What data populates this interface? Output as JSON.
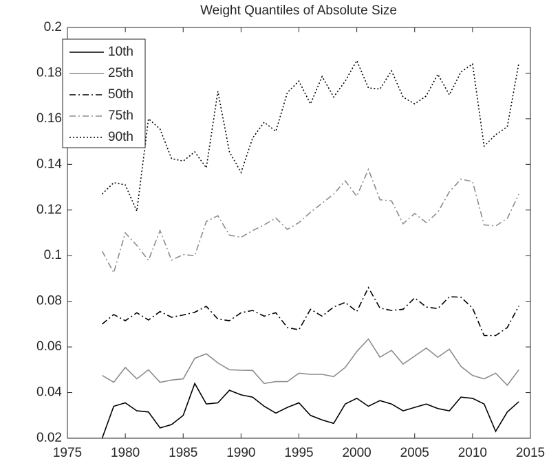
{
  "chart_data": {
    "type": "line",
    "title": "Weight Quantiles of Absolute Size",
    "x": [
      1978,
      1979,
      1980,
      1981,
      1982,
      1983,
      1984,
      1985,
      1986,
      1987,
      1988,
      1989,
      1990,
      1991,
      1992,
      1993,
      1994,
      1995,
      1996,
      1997,
      1998,
      1999,
      2000,
      2001,
      2002,
      2003,
      2004,
      2005,
      2006,
      2007,
      2008,
      2009,
      2010,
      2011,
      2012,
      2013,
      2014
    ],
    "xlim": [
      1975,
      2015
    ],
    "xticks": [
      1975,
      1980,
      1985,
      1990,
      1995,
      2000,
      2005,
      2010,
      2015
    ],
    "ylim": [
      0.02,
      0.2
    ],
    "yticks": [
      0.02,
      0.04,
      0.06,
      0.08,
      0.1,
      0.12,
      0.14,
      0.16,
      0.18,
      0.2
    ],
    "legend": "upper-left",
    "series": [
      {
        "name": "10th",
        "color": "#000000",
        "line_style": "solid",
        "values": [
          0.02,
          0.034,
          0.0355,
          0.032,
          0.0315,
          0.0245,
          0.026,
          0.03,
          0.044,
          0.035,
          0.0355,
          0.041,
          0.039,
          0.038,
          0.034,
          0.031,
          0.0335,
          0.0355,
          0.03,
          0.028,
          0.0265,
          0.035,
          0.0375,
          0.034,
          0.0365,
          0.035,
          0.032,
          0.0335,
          0.035,
          0.033,
          0.032,
          0.038,
          0.0375,
          0.035,
          0.023,
          0.0315,
          0.036
        ]
      },
      {
        "name": "25th",
        "color": "#8c8c8c",
        "line_style": "solid",
        "values": [
          0.0475,
          0.0445,
          0.051,
          0.046,
          0.05,
          0.0445,
          0.0455,
          0.046,
          0.055,
          0.057,
          0.053,
          0.05,
          0.0498,
          0.0497,
          0.044,
          0.0448,
          0.0448,
          0.0485,
          0.048,
          0.048,
          0.047,
          0.051,
          0.058,
          0.0635,
          0.0555,
          0.0585,
          0.0525,
          0.056,
          0.0595,
          0.0555,
          0.059,
          0.0515,
          0.0475,
          0.046,
          0.0485,
          0.0432,
          0.05
        ]
      },
      {
        "name": "50th",
        "color": "#000000",
        "line_style": "dashdot",
        "values": [
          0.07,
          0.0742,
          0.0715,
          0.075,
          0.0718,
          0.0755,
          0.073,
          0.074,
          0.0752,
          0.0778,
          0.0722,
          0.0715,
          0.075,
          0.076,
          0.0735,
          0.075,
          0.0685,
          0.0675,
          0.0765,
          0.0735,
          0.0775,
          0.0795,
          0.0755,
          0.086,
          0.077,
          0.076,
          0.0765,
          0.0815,
          0.0775,
          0.0768,
          0.082,
          0.0818,
          0.077,
          0.065,
          0.065,
          0.0685,
          0.078
        ]
      },
      {
        "name": "75th",
        "color": "#8c8c8c",
        "line_style": "dashdot",
        "values": [
          0.102,
          0.0925,
          0.11,
          0.1045,
          0.098,
          0.111,
          0.098,
          0.1005,
          0.1,
          0.115,
          0.1175,
          0.109,
          0.108,
          0.111,
          0.1135,
          0.1165,
          0.1115,
          0.1145,
          0.119,
          0.123,
          0.127,
          0.1328,
          0.126,
          0.1378,
          0.1245,
          0.124,
          0.114,
          0.1185,
          0.1145,
          0.119,
          0.128,
          0.1335,
          0.1325,
          0.1135,
          0.113,
          0.1163,
          0.127
        ]
      },
      {
        "name": "90th",
        "color": "#000000",
        "line_style": "dotted",
        "values": [
          0.127,
          0.132,
          0.131,
          0.1195,
          0.16,
          0.1555,
          0.1425,
          0.1415,
          0.1455,
          0.1385,
          0.172,
          0.1455,
          0.1365,
          0.1515,
          0.1585,
          0.1545,
          0.1715,
          0.1765,
          0.1665,
          0.1785,
          0.1695,
          0.1765,
          0.1855,
          0.1735,
          0.173,
          0.181,
          0.1695,
          0.1665,
          0.17,
          0.1795,
          0.1705,
          0.1805,
          0.184,
          0.148,
          0.153,
          0.1565,
          0.1845
        ]
      }
    ]
  }
}
